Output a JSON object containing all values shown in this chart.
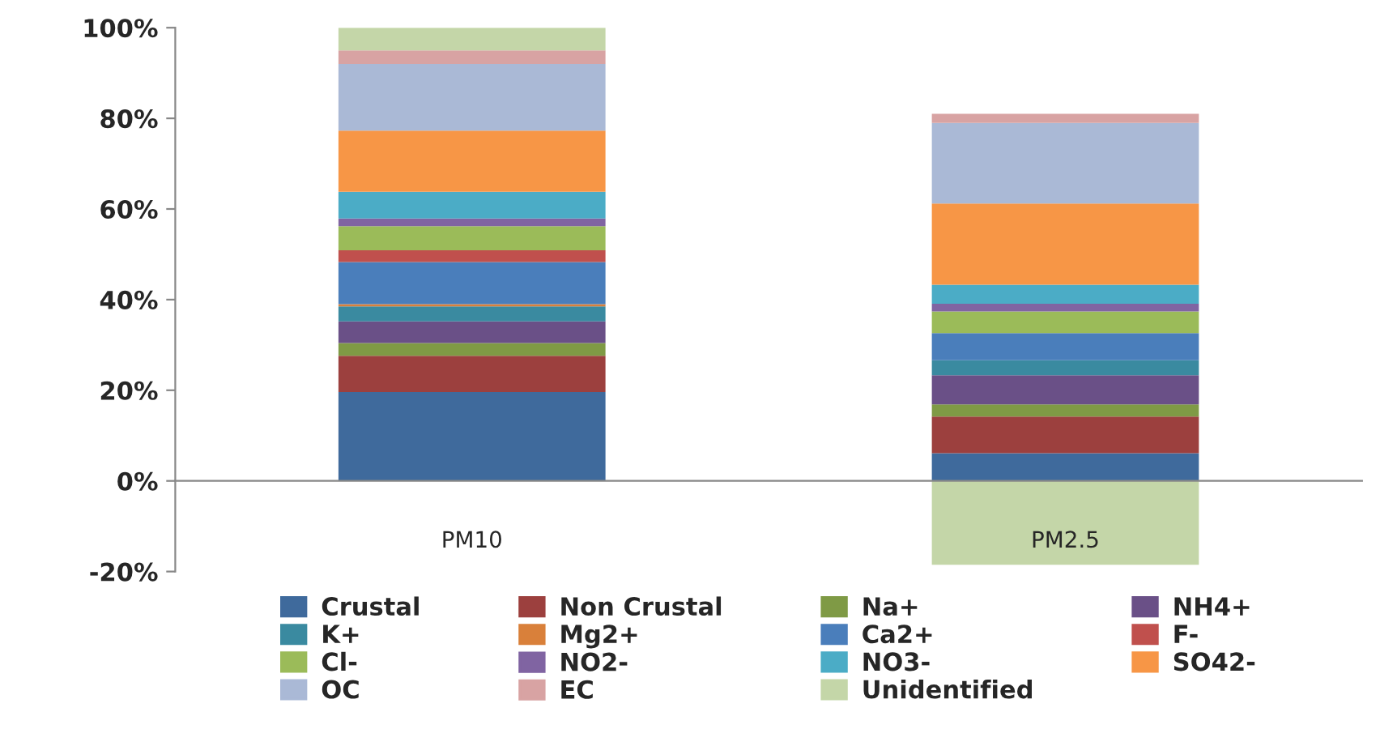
{
  "chart_data": {
    "type": "bar",
    "stacked": true,
    "categories": [
      "PM10",
      "PM2.5"
    ],
    "series": [
      {
        "name": "Crustal",
        "color": "#3f6a9c",
        "values": [
          19.6,
          6.1
        ]
      },
      {
        "name": "Non Crustal",
        "color": "#9c403e",
        "values": [
          8.0,
          8.1
        ]
      },
      {
        "name": "Na+",
        "color": "#7f9a45",
        "values": [
          2.8,
          2.7
        ]
      },
      {
        "name": "NH4+",
        "color": "#6a5087",
        "values": [
          4.8,
          6.4
        ]
      },
      {
        "name": "K+",
        "color": "#3a8aa0",
        "values": [
          3.3,
          3.3
        ]
      },
      {
        "name": "Mg2+",
        "color": "#d9803a",
        "values": [
          0.5,
          0
        ]
      },
      {
        "name": "Ca2+",
        "color": "#4a7ebb",
        "values": [
          9.3,
          6.0
        ]
      },
      {
        "name": "F-",
        "color": "#c0504d",
        "values": [
          2.6,
          0
        ]
      },
      {
        "name": "Cl-",
        "color": "#9bbb59",
        "values": [
          5.3,
          4.8
        ]
      },
      {
        "name": "NO2-",
        "color": "#8064a2",
        "values": [
          1.7,
          1.7
        ]
      },
      {
        "name": "NO3-",
        "color": "#4bacc6",
        "values": [
          5.9,
          4.2
        ]
      },
      {
        "name": "SO42-",
        "color": "#f79646",
        "values": [
          13.5,
          17.9
        ]
      },
      {
        "name": "OC",
        "color": "#aab9d6",
        "values": [
          14.7,
          17.8
        ]
      },
      {
        "name": "EC",
        "color": "#d8a3a3",
        "values": [
          3.0,
          2.0
        ]
      },
      {
        "name": "Unidentified",
        "color": "#c4d6a8",
        "values": [
          5.0,
          -18.5
        ]
      }
    ],
    "ylim": [
      -20,
      100
    ],
    "yticks": [
      {
        "value": -20,
        "label": "-20%"
      },
      {
        "value": 0,
        "label": "0%"
      },
      {
        "value": 20,
        "label": "20%"
      },
      {
        "value": 40,
        "label": "40%"
      },
      {
        "value": 60,
        "label": "60%"
      },
      {
        "value": 80,
        "label": "80%"
      },
      {
        "value": 100,
        "label": "100%"
      }
    ],
    "grid": false,
    "legend": "bottom"
  }
}
